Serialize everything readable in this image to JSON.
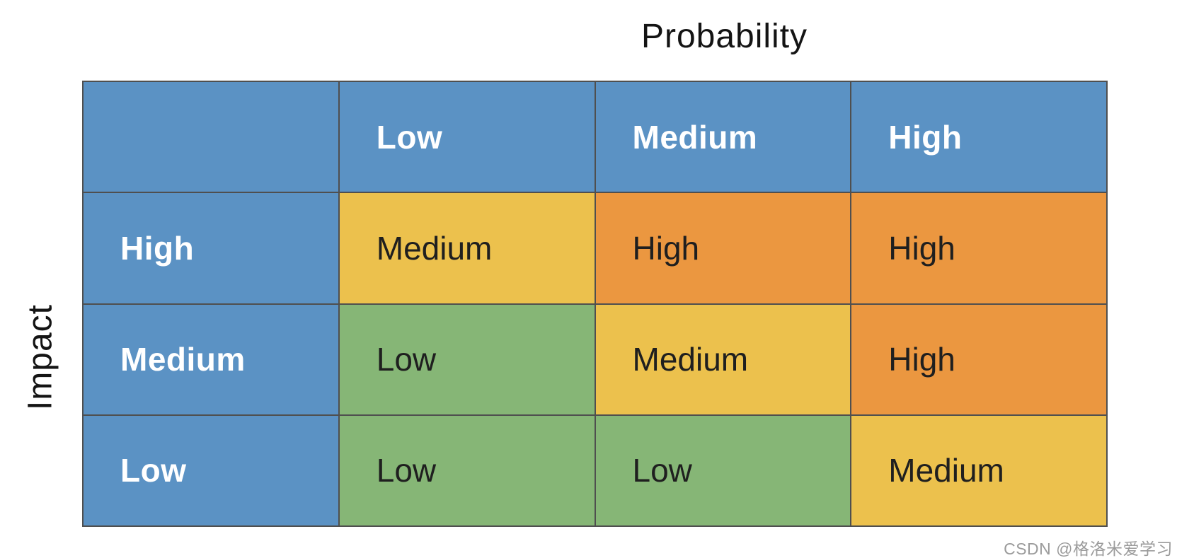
{
  "axes": {
    "column_title": "Probability",
    "row_title": "Impact"
  },
  "header": {
    "corner": "",
    "columns": [
      "Low",
      "Medium",
      "High"
    ]
  },
  "matrix": {
    "rows": [
      {
        "label": "High",
        "cells": [
          {
            "label": "Medium",
            "level": "medium"
          },
          {
            "label": "High",
            "level": "high"
          },
          {
            "label": "High",
            "level": "high"
          }
        ]
      },
      {
        "label": "Medium",
        "cells": [
          {
            "label": "Low",
            "level": "low"
          },
          {
            "label": "Medium",
            "level": "medium"
          },
          {
            "label": "High",
            "level": "high"
          }
        ]
      },
      {
        "label": "Low",
        "cells": [
          {
            "label": "Low",
            "level": "low"
          },
          {
            "label": "Low",
            "level": "low"
          },
          {
            "label": "Medium",
            "level": "medium"
          }
        ]
      }
    ]
  },
  "colors": {
    "header_bg": "#5b92c4",
    "levels": {
      "low": "#86b676",
      "medium": "#ecc14d",
      "high": "#eb9740"
    },
    "grid_line": "#4f4f4f",
    "header_text": "#ffffff",
    "cell_text": "#1f1f1f",
    "watermark_text": "#9b9b9b"
  },
  "watermark": {
    "text": "CSDN @格洛米爱学习"
  }
}
